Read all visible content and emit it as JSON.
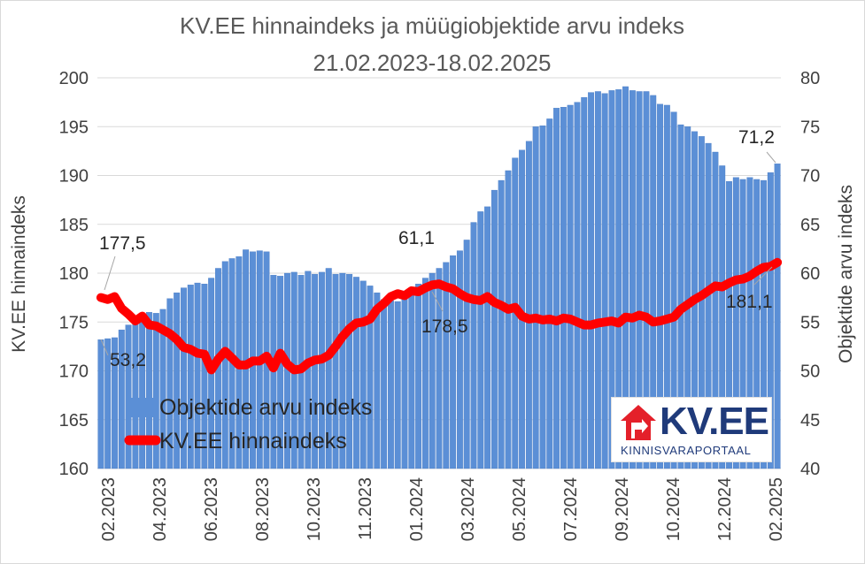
{
  "chart_data": {
    "type": "bar+line",
    "title": "KV.EE hinnaindeks ja müügiobjektide arvu indeks",
    "subtitle": "21.02.2023-18.02.2025",
    "ylabel_left": "KV.EE hinnaindeks",
    "ylabel_right": "Objektide arvu indeks",
    "ylim_left": [
      160,
      200
    ],
    "ylim_right": [
      40,
      80
    ],
    "yticks_left": [
      "160",
      "165",
      "170",
      "175",
      "180",
      "185",
      "190",
      "195",
      "200"
    ],
    "yticks_right": [
      "40",
      "45",
      "50",
      "55",
      "60",
      "65",
      "70",
      "75",
      "80"
    ],
    "xticks": [
      "02.2023",
      "04.2023",
      "06.2023",
      "08.2023",
      "10.2023",
      "11.2023",
      "01.2024",
      "03.2024",
      "05.2024",
      "07.2024",
      "09.2024",
      "10.2024",
      "12.2024",
      "02.2025"
    ],
    "legend": {
      "bars": "Objektide arvu indeks",
      "line": "KV.EE hinnaindeks",
      "position": "bottom-left"
    },
    "colors": {
      "bars": "#5b8fd6",
      "bars_edge": "#3d72bf",
      "line": "#ff0000"
    },
    "series": [
      {
        "name": "Objektide arvu indeks",
        "axis": "right",
        "values": [
          53.2,
          53.3,
          53.4,
          54.2,
          54.7,
          55.3,
          55.6,
          56.0,
          55.9,
          56.3,
          57.4,
          58.0,
          58.5,
          58.8,
          59.0,
          58.9,
          59.5,
          60.5,
          61.2,
          61.5,
          61.7,
          62.4,
          62.2,
          62.3,
          62.2,
          59.8,
          59.7,
          60.0,
          60.1,
          59.8,
          60.2,
          59.9,
          60.1,
          60.5,
          59.9,
          60.0,
          59.9,
          59.6,
          59.2,
          58.7,
          58.0,
          57.3,
          57.2,
          57.1,
          57.5,
          58.3,
          58.9,
          59.5,
          60.0,
          60.5,
          61.1,
          61.8,
          62.3,
          63.4,
          65.2,
          66.3,
          66.8,
          68.5,
          69.5,
          70.5,
          71.8,
          72.6,
          73.5,
          75.0,
          75.1,
          75.8,
          76.9,
          77.0,
          77.2,
          77.5,
          78.0,
          78.5,
          78.6,
          78.4,
          78.7,
          78.8,
          79.1,
          78.7,
          78.6,
          78.6,
          78.2,
          77.3,
          77.2,
          76.5,
          75.2,
          75.0,
          74.5,
          74.0,
          73.3,
          72.4,
          71.0,
          69.4,
          69.8,
          69.6,
          69.8,
          69.6,
          69.5,
          70.3,
          71.2
        ]
      },
      {
        "name": "KV.EE hinnaindeks",
        "axis": "left",
        "values": [
          177.5,
          177.3,
          177.6,
          176.4,
          175.8,
          175.1,
          175.6,
          174.7,
          174.6,
          174.2,
          173.8,
          173.2,
          172.4,
          172.2,
          171.8,
          171.7,
          170.1,
          171.2,
          172.0,
          171.3,
          170.6,
          170.6,
          171.0,
          171.0,
          171.5,
          170.3,
          171.8,
          170.7,
          170.1,
          170.2,
          170.8,
          171.1,
          171.2,
          171.6,
          172.5,
          173.5,
          174.3,
          174.9,
          175.0,
          175.3,
          176.3,
          176.9,
          177.6,
          177.9,
          177.7,
          178.2,
          178.1,
          178.5,
          178.8,
          178.9,
          178.6,
          178.4,
          177.9,
          177.5,
          177.3,
          177.2,
          177.6,
          177.0,
          176.7,
          176.3,
          176.5,
          175.6,
          175.3,
          175.4,
          175.2,
          175.3,
          175.1,
          175.4,
          175.3,
          175.0,
          174.7,
          174.7,
          174.9,
          175.0,
          175.1,
          174.9,
          175.5,
          175.4,
          175.7,
          175.5,
          175.0,
          175.1,
          175.3,
          175.5,
          176.3,
          176.8,
          177.3,
          177.7,
          178.2,
          178.7,
          178.6,
          179.0,
          179.3,
          179.4,
          179.7,
          180.2,
          180.6,
          180.7,
          181.1
        ]
      }
    ],
    "annotations": {
      "line_start": "177,5",
      "bar_start": "53,2",
      "bar_mid": "61,1",
      "line_mid": "178,5",
      "bar_end": "71,2",
      "line_end": "181,1"
    }
  },
  "logo": {
    "name": "KV.EE",
    "tagline": "KINNISVARAPORTAAL"
  }
}
